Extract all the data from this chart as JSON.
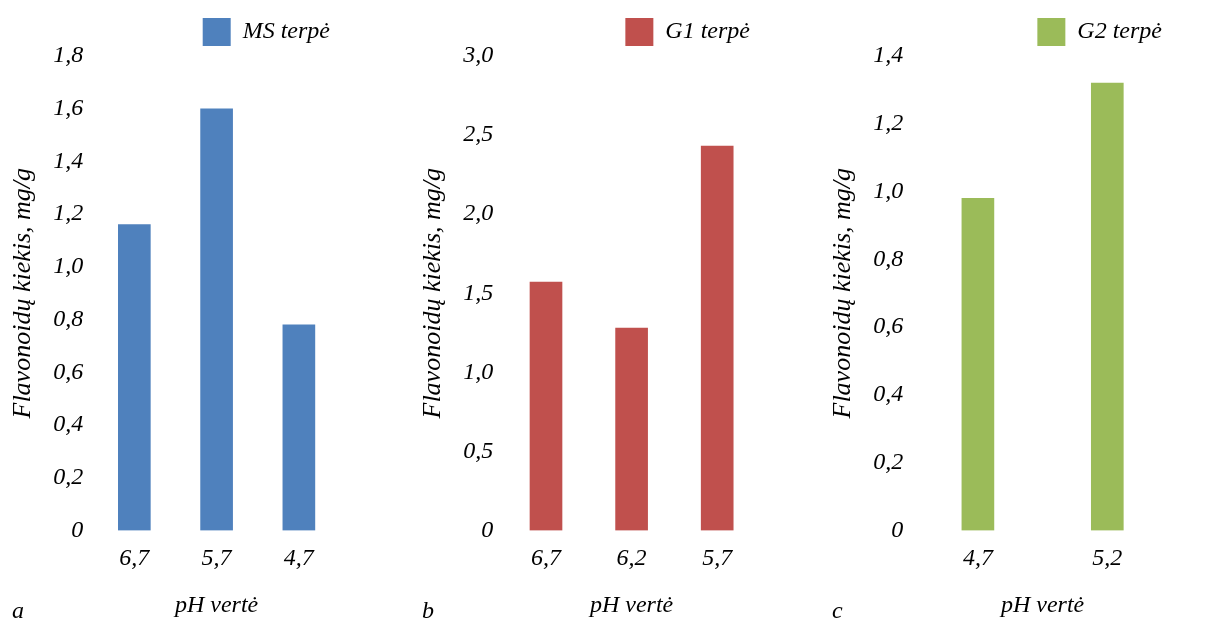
{
  "chart_data": [
    {
      "type": "bar",
      "categories": [
        "6,7",
        "5,7",
        "4,7"
      ],
      "series": [
        {
          "name": "MS terpė",
          "color": "#4f81bd",
          "values": [
            1.16,
            1.6,
            0.78
          ]
        }
      ],
      "ylim": [
        0,
        1.8
      ],
      "yticks": [
        {
          "value": 0,
          "label": "0"
        },
        {
          "value": 0.2,
          "label": "0,2"
        },
        {
          "value": 0.4,
          "label": "0,4"
        },
        {
          "value": 0.6,
          "label": "0,6"
        },
        {
          "value": 0.8,
          "label": "0,8"
        },
        {
          "value": 1.0,
          "label": "1,0"
        },
        {
          "value": 1.2,
          "label": "1,2"
        },
        {
          "value": 1.4,
          "label": "1,4"
        },
        {
          "value": 1.6,
          "label": "1,6"
        },
        {
          "value": 1.8,
          "label": "1,8"
        }
      ],
      "xlabel": "pH vertė",
      "ylabel": "Flavonoidų kiekis, mg/g",
      "legend": "top right",
      "grid": false,
      "annotations": [
        "a"
      ]
    },
    {
      "type": "bar",
      "categories": [
        "6,7",
        "6,2",
        "5,7"
      ],
      "series": [
        {
          "name": "G1 terpė",
          "color": "#c0504d",
          "values": [
            1.57,
            1.28,
            2.43
          ]
        }
      ],
      "ylim": [
        0,
        3.0
      ],
      "yticks": [
        {
          "value": 0,
          "label": "0"
        },
        {
          "value": 0.5,
          "label": "0,5"
        },
        {
          "value": 1.0,
          "label": "1,0"
        },
        {
          "value": 1.5,
          "label": "1,5"
        },
        {
          "value": 2.0,
          "label": "2,0"
        },
        {
          "value": 2.5,
          "label": "2,5"
        },
        {
          "value": 3.0,
          "label": "3,0"
        }
      ],
      "xlabel": "pH vertė",
      "ylabel": "Flavonoidų kiekis, mg/g",
      "legend": "top right",
      "grid": false,
      "annotations": [
        "b"
      ]
    },
    {
      "type": "bar",
      "categories": [
        "4,7",
        "5,2"
      ],
      "series": [
        {
          "name": "G2 terpė",
          "color": "#9bbb59",
          "values": [
            0.98,
            1.32
          ]
        }
      ],
      "ylim": [
        0,
        1.4
      ],
      "yticks": [
        {
          "value": 0,
          "label": "0"
        },
        {
          "value": 0.2,
          "label": "0,2"
        },
        {
          "value": 0.4,
          "label": "0,4"
        },
        {
          "value": 0.6,
          "label": "0,6"
        },
        {
          "value": 0.8,
          "label": "0,8"
        },
        {
          "value": 1.0,
          "label": "1,0"
        },
        {
          "value": 1.2,
          "label": "1,2"
        },
        {
          "value": 1.4,
          "label": "1,4"
        }
      ],
      "xlabel": "pH vertė",
      "ylabel": "Flavonoidų kiekis, mg/g",
      "legend": "top right",
      "grid": false,
      "annotations": [
        "c"
      ]
    }
  ]
}
